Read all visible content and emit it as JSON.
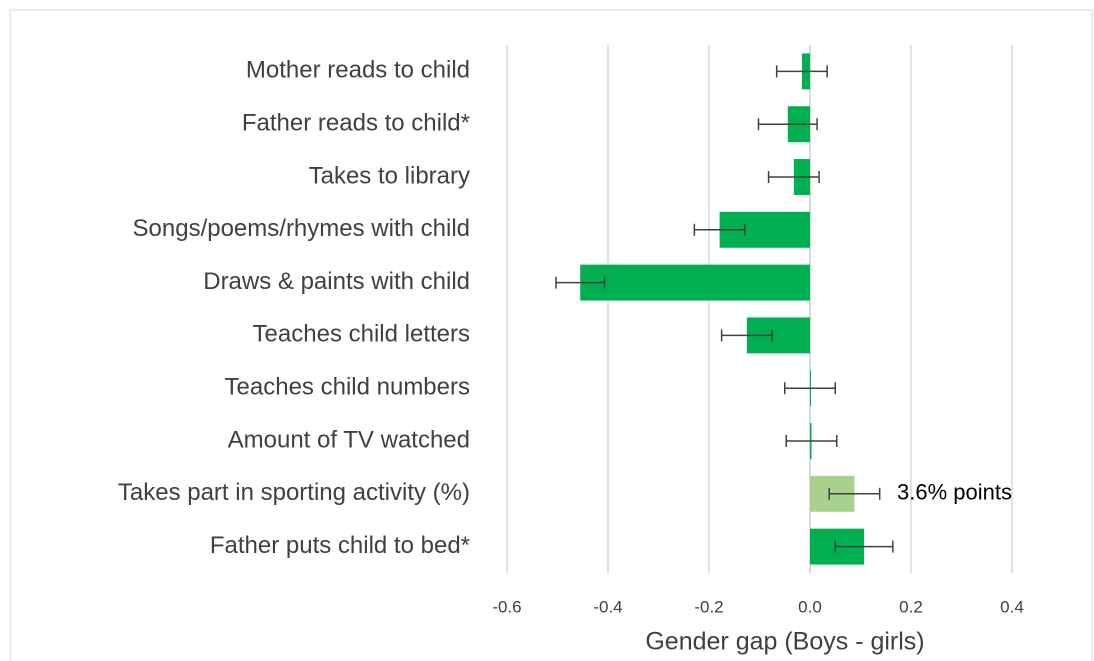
{
  "chart_data": {
    "type": "bar",
    "orientation": "horizontal",
    "categories": [
      "Mother reads to child",
      "Father reads to child*",
      "Takes to library",
      "Songs/poems/rhymes with child",
      "Draws & paints with child",
      "Teaches child letters",
      "Teaches child numbers",
      "Amount of TV watched",
      "Takes part in sporting activity (%)",
      "Father puts child to bed*"
    ],
    "values": [
      -0.016,
      -0.044,
      -0.032,
      -0.179,
      -0.455,
      -0.125,
      0,
      0.003,
      0.088,
      0.107
    ],
    "errors": [
      0.05,
      0.058,
      0.05,
      0.05,
      0.048,
      0.05,
      0.05,
      0.05,
      0.05,
      0.057
    ],
    "colors": [
      "#00b050",
      "#00b050",
      "#00b050",
      "#00b050",
      "#00b050",
      "#00b050",
      "#00b050",
      "#00b050",
      "#a9d18e",
      "#00b050"
    ],
    "annotation": "3.6% points",
    "xlabel": "Gender gap (Boys - girls)",
    "xlim": [
      -0.6,
      0.4
    ],
    "xticks": [
      -0.6,
      -0.4,
      -0.2,
      {
        "value": 0,
        "label": "0.0"
      },
      0.2,
      0.4
    ],
    "grid": true
  }
}
